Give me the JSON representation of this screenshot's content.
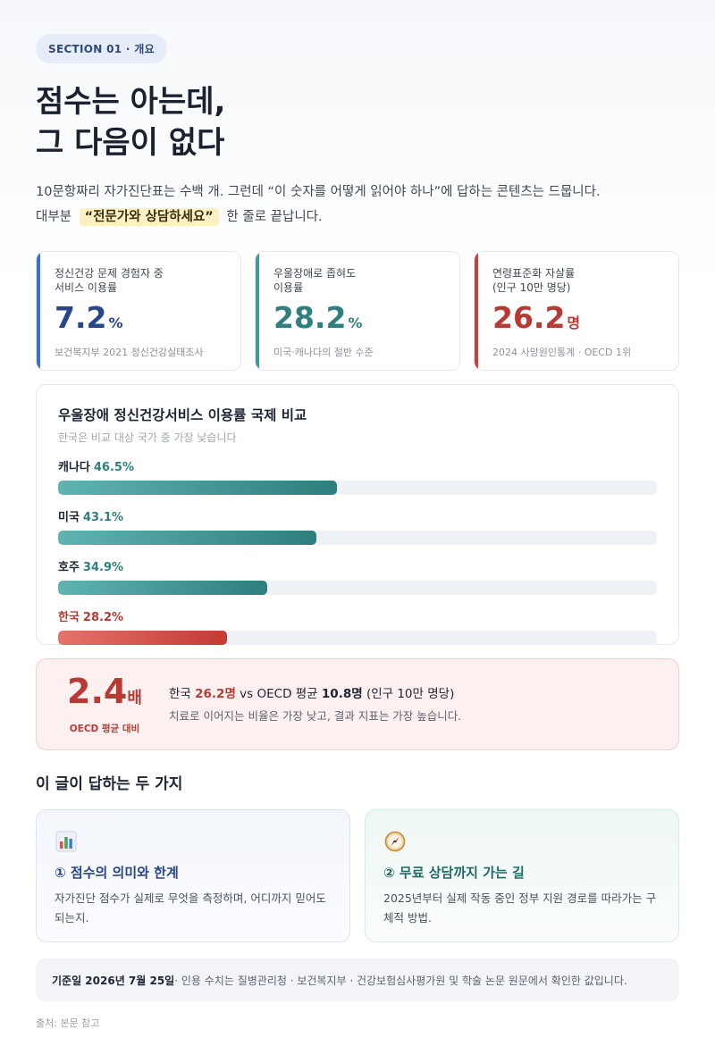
{
  "section_pill": "SECTION 01 · 개요",
  "headline": {
    "line1": "점수는 아는데,",
    "line2": "그 다음이 없다"
  },
  "lead": {
    "line1": "10문항짜리 자가진단표는 수백 개. 그런데 “이 숫자를 어떻게 읽어야 하나”에 답하는 콘텐츠는 드뭅니다.",
    "line2_pre": "대부분",
    "line2_highlight": "“전문가와 상담하세요”",
    "line2_post": "한 줄로 끝납니다."
  },
  "stats": [
    {
      "label": "정신건강 문제 경험자 중\n서비스 이용률",
      "value": "7.2",
      "unit": "%",
      "source": "보건복지부 2021 정신건강실태조사",
      "color": "#3a6fd8"
    },
    {
      "label": "우울장애로 좁혀도\n이용률",
      "value": "28.2",
      "unit": "%",
      "source": "미국·캐나다의 절반 수준",
      "color": "#3f9a9a"
    },
    {
      "label": "연령표준화 자살률\n(인구 10만 명당)",
      "value": "26.2",
      "unit": "명",
      "source": "2024 사망원인통계 · OECD 1위",
      "color": "#c8403e"
    }
  ],
  "chart_data": {
    "type": "bar",
    "title": "우울장애 정신건강서비스 이용률 국제 비교",
    "subtitle": "한국은 비교 대상 국가 중 가장 낮습니다",
    "categories": [
      "캐나다",
      "미국",
      "호주",
      "한국"
    ],
    "values": [
      46.5,
      43.1,
      34.9,
      28.2
    ],
    "value_labels": [
      "46.5%",
      "43.1%",
      "34.9%",
      "28.2%"
    ],
    "xlim": [
      0,
      100
    ],
    "highlight": "한국",
    "colors": {
      "default": "#2e7f7c",
      "highlight": "#c43a33"
    }
  },
  "ratio": {
    "value": "2.4",
    "unit": "배",
    "caption": "OECD 평균 대비",
    "line1_pre": "한국",
    "korea_value": "26.2명",
    "line1_mid": "vs OECD 평균",
    "oecd_value": "10.8명",
    "line1_post": "(인구 10만 명당)",
    "line2": "치료로 이어지는 비율은 가장 낮고, 결과 지표는 가장 높습니다."
  },
  "answers_section": {
    "title": "이 글이 답하는 두 가지",
    "items": [
      {
        "icon": "bar-chart-icon",
        "title": "① 점수의 의미와 한계",
        "body": "자가진단 점수가 실제로 무엇을 측정하며, 어디까지 믿어도 되는지."
      },
      {
        "icon": "compass-icon",
        "title": "② 무료 상담까지 가는 길",
        "body": "2025년부터 실제 작동 중인 정부 지원 경로를 따라가는 구체적 방법."
      }
    ]
  },
  "footnote": {
    "bold": "기준일 2026년 7월 25일",
    "text": " · 인용 수치는 질병관리청 · 보건복지부 · 건강보험심사평가원 및 학술 논문 원문에서 확인한 값입니다."
  },
  "source": "출처: 본문 참고"
}
